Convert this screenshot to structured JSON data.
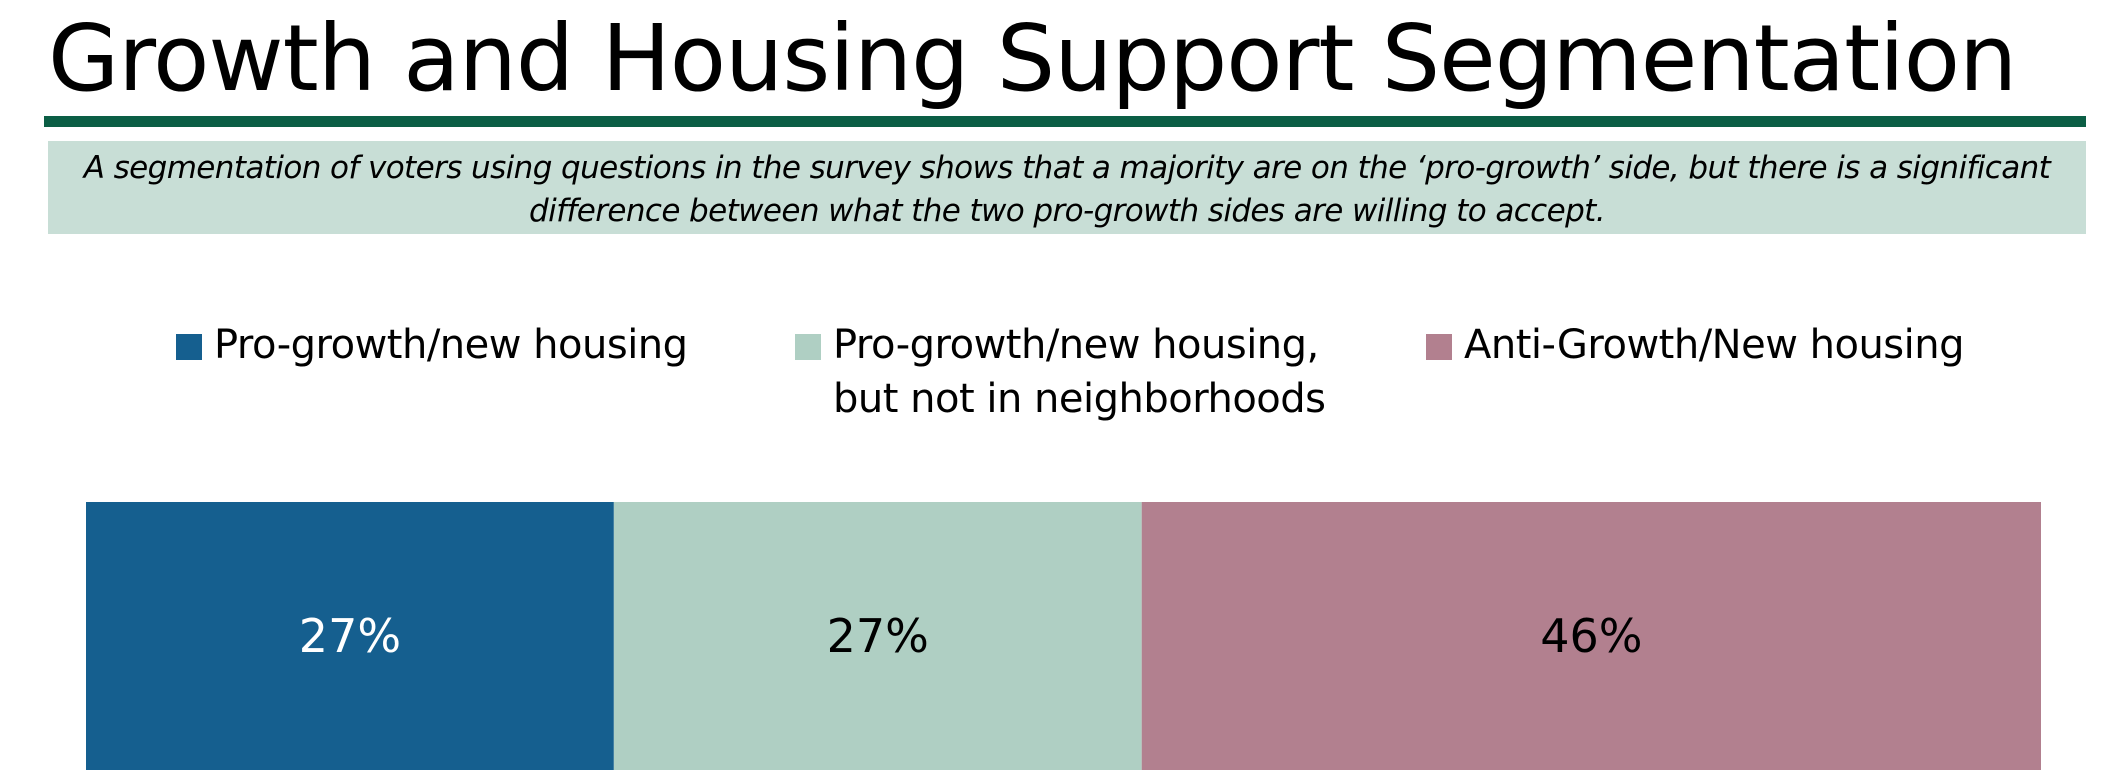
{
  "header": {
    "title": "Growth and Housing Support Segmentation",
    "subtitle": "A segmentation of voters using questions in the survey shows that a majority are on the ‘pro-growth’ side, but there is a significant difference between what the two pro-growth sides are willing to accept."
  },
  "colors": {
    "accent_rule": "#0b5e45",
    "subtitle_background": "#c8ded6"
  },
  "chart_data": {
    "type": "bar",
    "orientation": "horizontal",
    "stacked": true,
    "legend_position": "top",
    "grid": false,
    "xlim": [
      0,
      100
    ],
    "categories": [
      ""
    ],
    "series": [
      {
        "name": "Pro-growth/new housing",
        "values": [
          27
        ],
        "label": "27%",
        "color": "#155f8f",
        "label_color": "#ffffff"
      },
      {
        "name": "Pro-growth/new housing,\nbut not in neighborhoods",
        "values": [
          27
        ],
        "label": "27%",
        "color": "#afcfc3",
        "label_color": "#000000"
      },
      {
        "name": "Anti-Growth/New housing",
        "values": [
          46
        ],
        "label": "46%",
        "color": "#b2808f",
        "label_color": "#000000"
      }
    ]
  }
}
